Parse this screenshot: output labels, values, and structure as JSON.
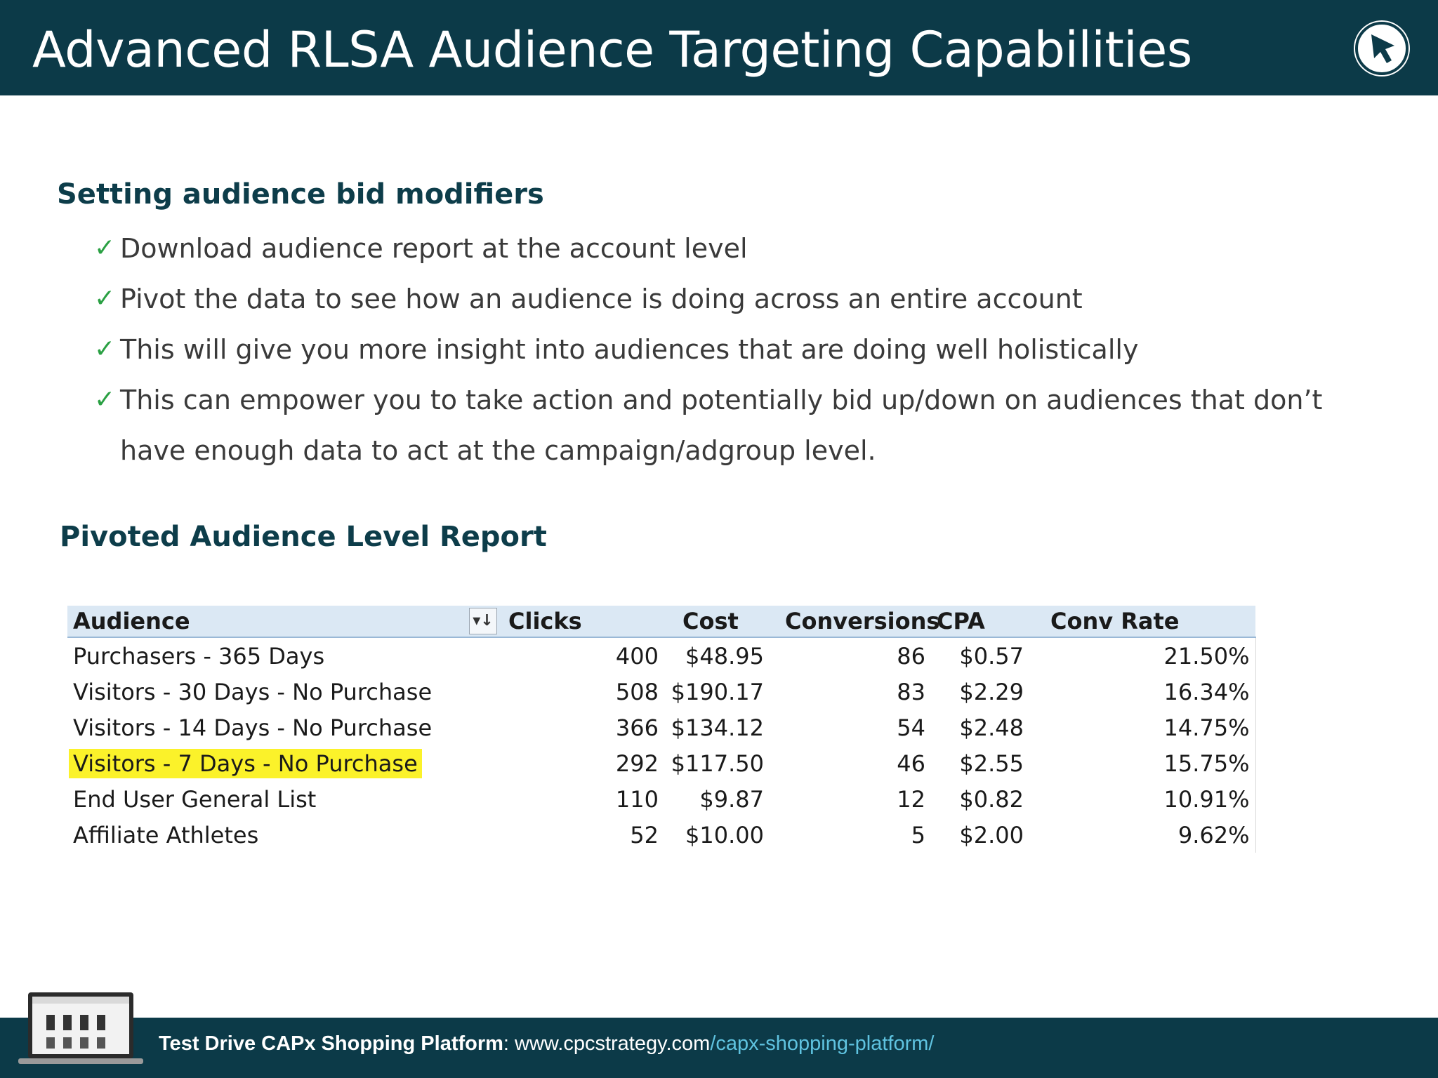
{
  "header": {
    "title": "Advanced RLSA Audience Targeting Capabilities",
    "logo_icon": "cursor-arrow-icon"
  },
  "section1": {
    "heading": "Setting audience bid modifiers",
    "bullets": [
      {
        "check": "✓",
        "text": "Download audience report at the account level"
      },
      {
        "check": "✓",
        "text": "Pivot the data to see how an audience is doing across an entire account"
      },
      {
        "check": "✓",
        "text": "This will give you more insight into audiences that are doing well holistically"
      },
      {
        "check": "✓",
        "text": "This can empower you to take action and potentially bid up/down on audiences that don’t have enough data to act at the campaign/adgroup level."
      }
    ]
  },
  "section2": {
    "heading": "Pivoted Audience Level Report"
  },
  "report": {
    "columns": [
      "Audience",
      "Clicks",
      "Cost",
      "Conversions",
      "CPA",
      "Conv Rate"
    ],
    "filter_icon": "▾↓",
    "rows": [
      {
        "audience": "Purchasers - 365 Days",
        "clicks": "400",
        "cost": "$48.95",
        "conversions": "86",
        "cpa": "$0.57",
        "conv_rate": "21.50%"
      },
      {
        "audience": "Visitors - 30 Days - No Purchase",
        "clicks": "508",
        "cost": "$190.17",
        "conversions": "83",
        "cpa": "$2.29",
        "conv_rate": "16.34%"
      },
      {
        "audience": "Visitors - 14 Days - No Purchase",
        "clicks": "366",
        "cost": "$134.12",
        "conversions": "54",
        "cpa": "$2.48",
        "conv_rate": "14.75%"
      },
      {
        "audience": "Visitors - 7 Days - No Purchase",
        "clicks": "292",
        "cost": "$117.50",
        "conversions": "46",
        "cpa": "$2.55",
        "conv_rate": "15.75%"
      },
      {
        "audience": "End User General List",
        "clicks": "110",
        "cost": "$9.87",
        "conversions": "12",
        "cpa": "$0.82",
        "conv_rate": "10.91%"
      },
      {
        "audience": "Affiliate Athletes",
        "clicks": "52",
        "cost": "$10.00",
        "conversions": "5",
        "cpa": "$2.00",
        "conv_rate": "9.62%"
      }
    ],
    "highlight_color": "#fbf22a"
  },
  "footer": {
    "strong": "Test Drive CAPx Shopping Platform",
    "sep": ": ",
    "domain": "www.cpcstrategy.com",
    "path": "/capx-shopping-platform/",
    "icon": "laptop-icon"
  },
  "colors": {
    "brand_dark": "#0c3a48",
    "check_green": "#2aa043",
    "link": "#5fc3e0"
  }
}
